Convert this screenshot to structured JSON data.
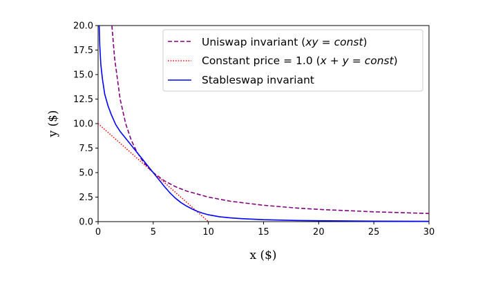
{
  "chart_data": {
    "type": "line",
    "xlabel": "x ($)",
    "ylabel": "y ($)",
    "xlim": [
      0,
      30
    ],
    "ylim": [
      0,
      20
    ],
    "xticks": [
      "0",
      "5",
      "10",
      "15",
      "20",
      "25",
      "30"
    ],
    "yticks": [
      "0.0",
      "2.5",
      "5.0",
      "7.5",
      "10.0",
      "12.5",
      "15.0",
      "17.5",
      "20.0"
    ],
    "grid": false,
    "legend_position": "top-right",
    "series": [
      {
        "name": "Uniswap invariant (xy = const)",
        "legend_plain": "Uniswap invariant (",
        "legend_math": "xy",
        "legend_eq": " = ",
        "legend_math2": "const",
        "legend_close": ")",
        "color": "#800080",
        "style": "dashed",
        "points": [
          [
            1.25,
            20
          ],
          [
            1.5,
            16.67
          ],
          [
            2,
            12.5
          ],
          [
            2.5,
            10
          ],
          [
            3,
            8.33
          ],
          [
            3.5,
            7.14
          ],
          [
            4,
            6.25
          ],
          [
            4.5,
            5.56
          ],
          [
            5,
            5
          ],
          [
            6,
            4.17
          ],
          [
            7,
            3.57
          ],
          [
            8,
            3.13
          ],
          [
            10,
            2.5
          ],
          [
            12,
            2.08
          ],
          [
            15,
            1.67
          ],
          [
            18,
            1.39
          ],
          [
            20,
            1.25
          ],
          [
            25,
            1.0
          ],
          [
            30,
            0.83
          ]
        ]
      },
      {
        "name": "Constant price = 1.0 (x + y = const)",
        "legend_plain": "Constant price = 1.0 (",
        "legend_math": "x + y",
        "legend_eq": " = ",
        "legend_math2": "const",
        "legend_close": ")",
        "color": "#ff0000",
        "style": "dotted",
        "points": [
          [
            0,
            10
          ],
          [
            10,
            0
          ]
        ]
      },
      {
        "name": "Stableswap invariant",
        "legend_plain": "Stableswap invariant",
        "color": "#0000ff",
        "style": "solid",
        "points": [
          [
            0.1,
            20
          ],
          [
            0.15,
            18
          ],
          [
            0.25,
            16
          ],
          [
            0.4,
            14.5
          ],
          [
            0.6,
            13
          ],
          [
            0.9,
            11.8
          ],
          [
            1.2,
            10.9
          ],
          [
            1.6,
            9.9
          ],
          [
            2,
            9.2
          ],
          [
            2.5,
            8.5
          ],
          [
            3,
            7.8
          ],
          [
            3.5,
            7.1
          ],
          [
            4,
            6.4
          ],
          [
            4.5,
            5.7
          ],
          [
            5,
            5
          ],
          [
            5.5,
            4.3
          ],
          [
            6,
            3.6
          ],
          [
            6.5,
            2.95
          ],
          [
            7,
            2.4
          ],
          [
            7.5,
            1.95
          ],
          [
            8,
            1.6
          ],
          [
            8.5,
            1.3
          ],
          [
            9,
            1.05
          ],
          [
            9.5,
            0.85
          ],
          [
            10,
            0.7
          ],
          [
            11,
            0.5
          ],
          [
            12,
            0.38
          ],
          [
            13,
            0.3
          ],
          [
            15,
            0.2
          ],
          [
            18,
            0.12
          ],
          [
            20,
            0.09
          ],
          [
            25,
            0.05
          ],
          [
            30,
            0.03
          ]
        ]
      }
    ]
  }
}
